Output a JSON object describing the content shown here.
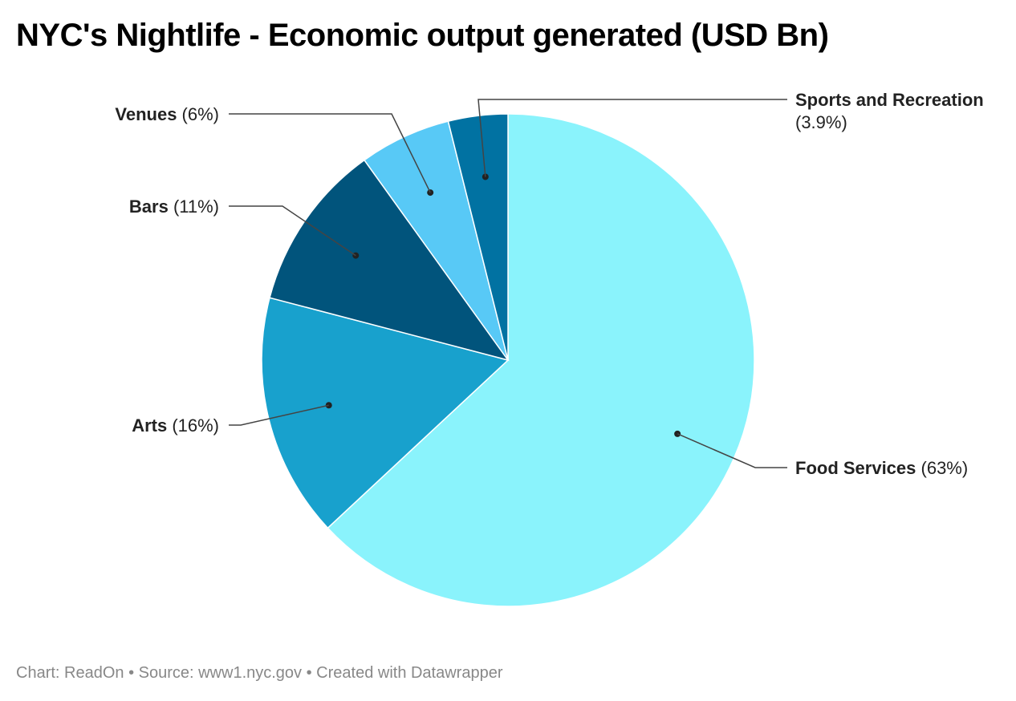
{
  "chart_data": {
    "type": "pie",
    "title": "NYC's Nightlife - Economic output generated (USD Bn)",
    "slices": [
      {
        "name": "Food Services",
        "value": 63,
        "label": "(63%)",
        "color": "#8af3fc"
      },
      {
        "name": "Arts",
        "value": 16,
        "label": "(16%)",
        "color": "#18a1cd"
      },
      {
        "name": "Bars",
        "value": 11,
        "label": "(11%)",
        "color": "#01547c"
      },
      {
        "name": "Venues",
        "value": 6,
        "label": "(6%)",
        "color": "#58c9f6"
      },
      {
        "name": "Sports and Recreation",
        "value": 3.9,
        "label": "(3.9%)",
        "color": "#0172a2"
      }
    ]
  },
  "footer": {
    "text": "Chart: ReadOn • Source: www1.nyc.gov • Created with Datawrapper"
  }
}
